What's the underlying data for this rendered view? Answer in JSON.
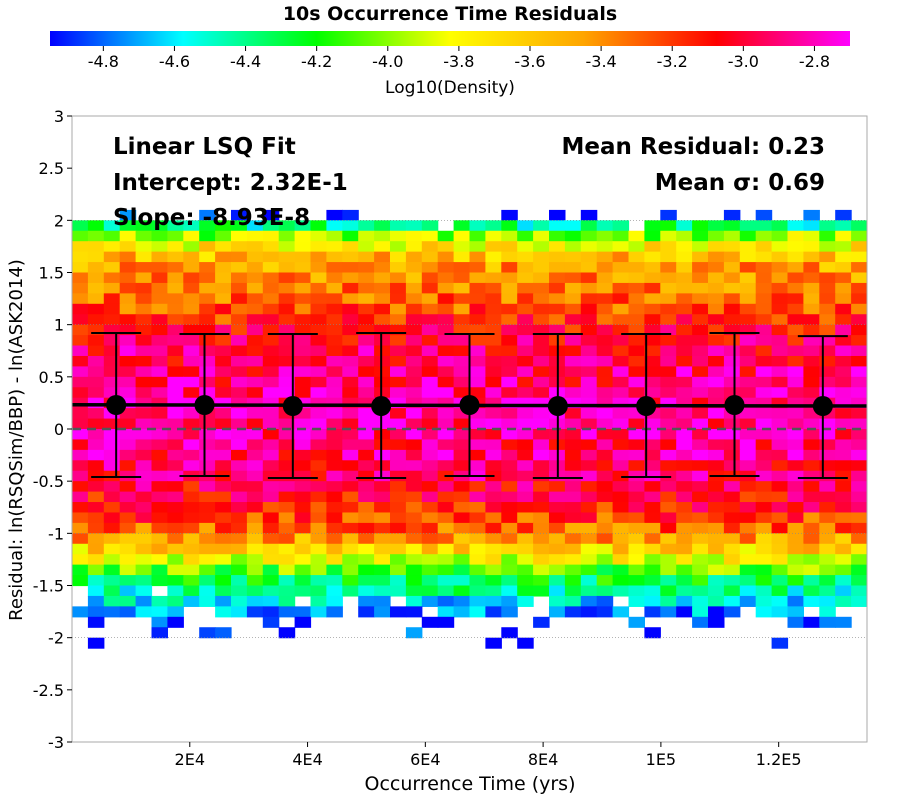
{
  "chart_data": {
    "type": "heatmap",
    "title": "10s Occurrence Time Residuals",
    "colorbar": {
      "label": "Log10(Density)",
      "range": [
        -4.95,
        -2.7
      ],
      "ticks": [
        "-4.8",
        "-4.6",
        "-4.4",
        "-4.2",
        "-4.0",
        "-3.8",
        "-3.6",
        "-3.4",
        "-3.2",
        "-3.0",
        "-2.8"
      ],
      "tick_values": [
        -4.8,
        -4.6,
        -4.4,
        -4.2,
        -4.0,
        -3.8,
        -3.6,
        -3.4,
        -3.2,
        -3.0,
        -2.8
      ],
      "stops": [
        "#0000ff",
        "#00ffff",
        "#00ff00",
        "#ffff00",
        "#ffa500",
        "#ff0000",
        "#ff00ff"
      ]
    },
    "xlabel": "Occurrence Time (yrs)",
    "ylabel": "Residual: ln(RSQSim/BBP) - ln(ASK2014)",
    "xlim": [
      0,
      135000
    ],
    "ylim": [
      -3,
      3
    ],
    "x_ticks": [
      "2E4",
      "4E4",
      "6E4",
      "8E4",
      "1E5",
      "1.2E5"
    ],
    "x_tick_values": [
      20000,
      40000,
      60000,
      80000,
      100000,
      120000
    ],
    "y_ticks": [
      "-3",
      "-2.5",
      "-2",
      "-1.5",
      "-1",
      "-0.5",
      "0",
      "0.5",
      "1",
      "1.5",
      "2",
      "2.5",
      "3"
    ],
    "y_tick_values": [
      -3,
      -2.5,
      -2,
      -1.5,
      -1,
      -0.5,
      0,
      0.5,
      1,
      1.5,
      2,
      2.5,
      3
    ],
    "grid_y": [
      -2,
      -1,
      1,
      2
    ],
    "zero_line": 0,
    "annotations": {
      "fit_title": "Linear LSQ Fit",
      "intercept": "Intercept: 2.32E-1",
      "slope": "Slope: -8.93E-8",
      "mean_residual": "Mean Residual: 0.23",
      "mean_sigma": "Mean σ: 0.69"
    },
    "fit_line": {
      "x": [
        0,
        135000
      ],
      "y": [
        0.232,
        0.22
      ]
    },
    "binned_means": [
      {
        "x": 7500,
        "mean": 0.23,
        "upper": 0.92,
        "lower": -0.46
      },
      {
        "x": 22500,
        "mean": 0.23,
        "upper": 0.91,
        "lower": -0.45
      },
      {
        "x": 37500,
        "mean": 0.22,
        "upper": 0.91,
        "lower": -0.47
      },
      {
        "x": 52500,
        "mean": 0.22,
        "upper": 0.92,
        "lower": -0.47
      },
      {
        "x": 67500,
        "mean": 0.23,
        "upper": 0.91,
        "lower": -0.45
      },
      {
        "x": 82500,
        "mean": 0.22,
        "upper": 0.91,
        "lower": -0.47
      },
      {
        "x": 97500,
        "mean": 0.22,
        "upper": 0.91,
        "lower": -0.46
      },
      {
        "x": 112500,
        "mean": 0.23,
        "upper": 0.92,
        "lower": -0.45
      },
      {
        "x": 127500,
        "mean": 0.22,
        "upper": 0.89,
        "lower": -0.47
      }
    ],
    "density_profile": {
      "x_bin_width": 2700,
      "y_bin_height": 0.1,
      "y_centers": [
        2.05,
        1.95,
        1.85,
        1.75,
        1.65,
        1.55,
        1.45,
        1.35,
        1.25,
        1.15,
        1.05,
        0.95,
        0.85,
        0.75,
        0.65,
        0.55,
        0.45,
        0.35,
        0.25,
        0.15,
        0.05,
        -0.05,
        -0.15,
        -0.25,
        -0.35,
        -0.45,
        -0.55,
        -0.65,
        -0.75,
        -0.85,
        -0.95,
        -1.05,
        -1.15,
        -1.25,
        -1.35,
        -1.45,
        -1.55,
        -1.65,
        -1.75,
        -1.85,
        -1.95,
        -2.05
      ],
      "log10_density": [
        -4.9,
        -4.4,
        -4.0,
        -3.75,
        -3.55,
        -3.45,
        -3.4,
        -3.35,
        -3.3,
        -3.25,
        -3.15,
        -3.05,
        -3.0,
        -2.95,
        -2.95,
        -2.9,
        -2.9,
        -2.85,
        -2.85,
        -2.85,
        -2.85,
        -2.85,
        -2.9,
        -2.9,
        -2.95,
        -2.95,
        -3.0,
        -3.05,
        -3.1,
        -3.2,
        -3.3,
        -3.45,
        -3.65,
        -3.85,
        -4.1,
        -4.3,
        -4.45,
        -4.6,
        -4.75,
        -4.85,
        -4.92,
        -4.95
      ],
      "fill_prob": [
        0.4,
        0.92,
        1,
        1,
        1,
        1,
        1,
        1,
        1,
        1,
        1,
        1,
        1,
        1,
        1,
        1,
        1,
        1,
        1,
        1,
        1,
        1,
        1,
        1,
        1,
        1,
        1,
        1,
        1,
        1,
        1,
        1,
        1,
        1,
        1,
        1,
        0.96,
        0.88,
        0.65,
        0.35,
        0.14,
        0.07
      ]
    }
  }
}
